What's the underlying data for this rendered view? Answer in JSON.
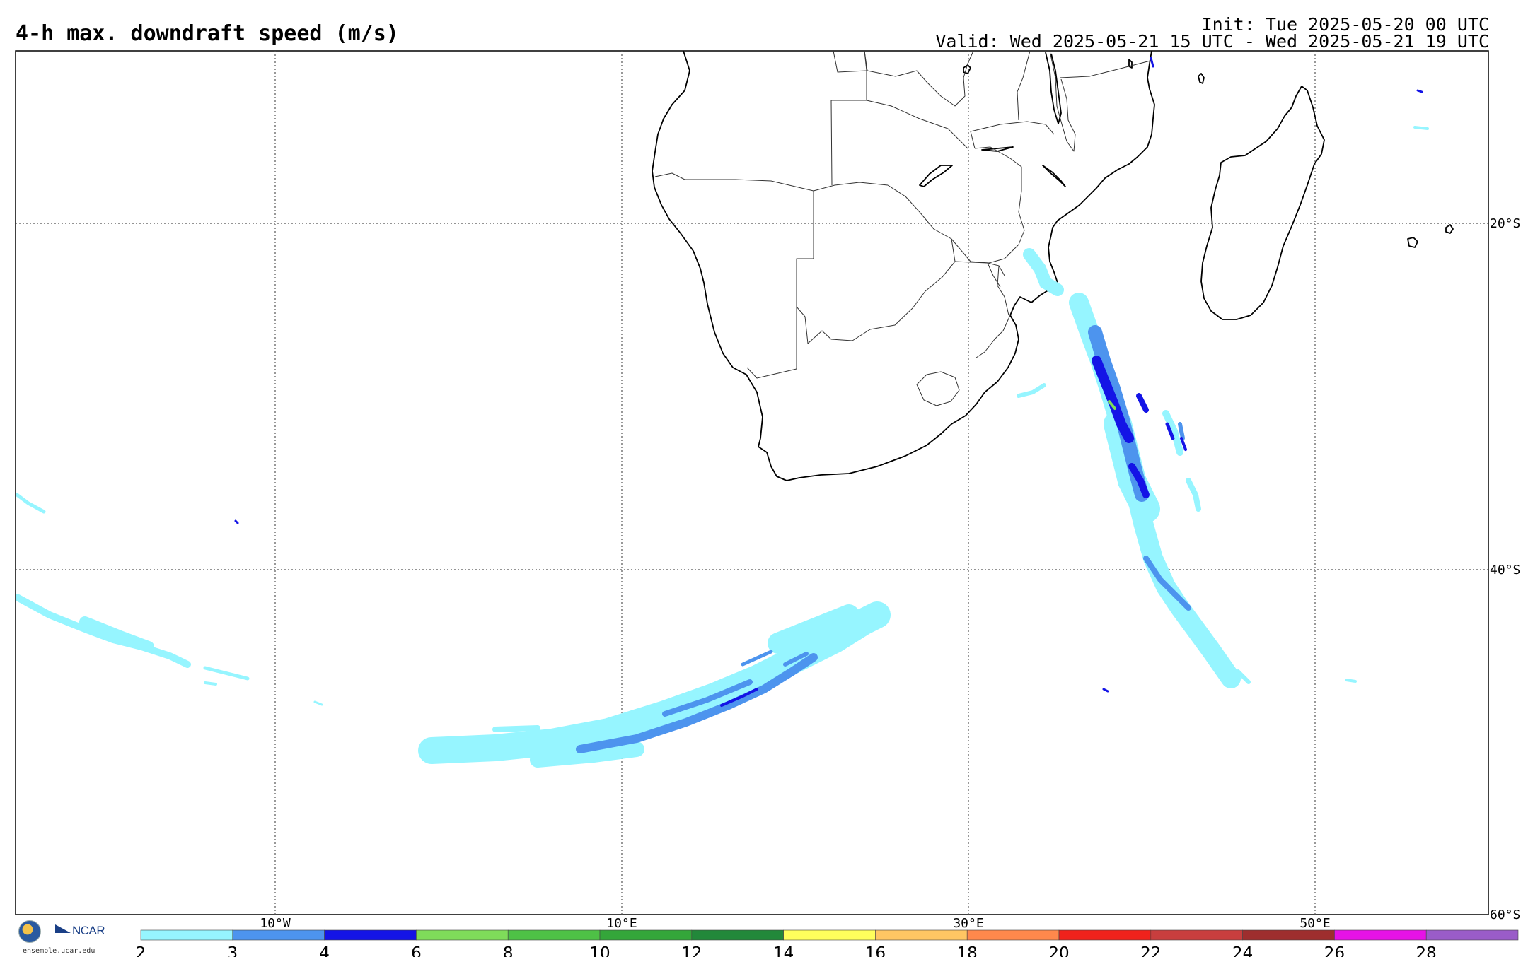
{
  "header": {
    "title": "4-h max. downdraft speed (m/s)",
    "init": "Init: Tue 2025-05-20 00 UTC",
    "valid": "Valid: Wed 2025-05-21 15 UTC - Wed 2025-05-21 19 UTC"
  },
  "map": {
    "lon_range": [
      -25,
      60
    ],
    "lat_range": [
      -60,
      -10
    ],
    "lon_labels": [
      "10°W",
      "10°E",
      "30°E",
      "50°E"
    ],
    "lat_labels": [
      "20°S",
      "40°S",
      "60°S"
    ],
    "gridlines": "dotted"
  },
  "legend": {
    "ticks": [
      "2",
      "3",
      "4",
      "6",
      "8",
      "10",
      "12",
      "14",
      "16",
      "18",
      "20",
      "22",
      "24",
      "26",
      "28"
    ],
    "colors": [
      "#96f5ff",
      "#4d94ee",
      "#1414e6",
      "#7fdc5a",
      "#4ec146",
      "#34a63a",
      "#22883a",
      "#ffff5c",
      "#ffc663",
      "#ff884c",
      "#f0221c",
      "#c83e3e",
      "#9e2e2e",
      "#e612e6",
      "#9a5cc8"
    ]
  },
  "logos": {
    "nsf_icon": "nsf-seal-icon",
    "ncar": "NCAR",
    "site": "ensemble.ucar.edu"
  }
}
